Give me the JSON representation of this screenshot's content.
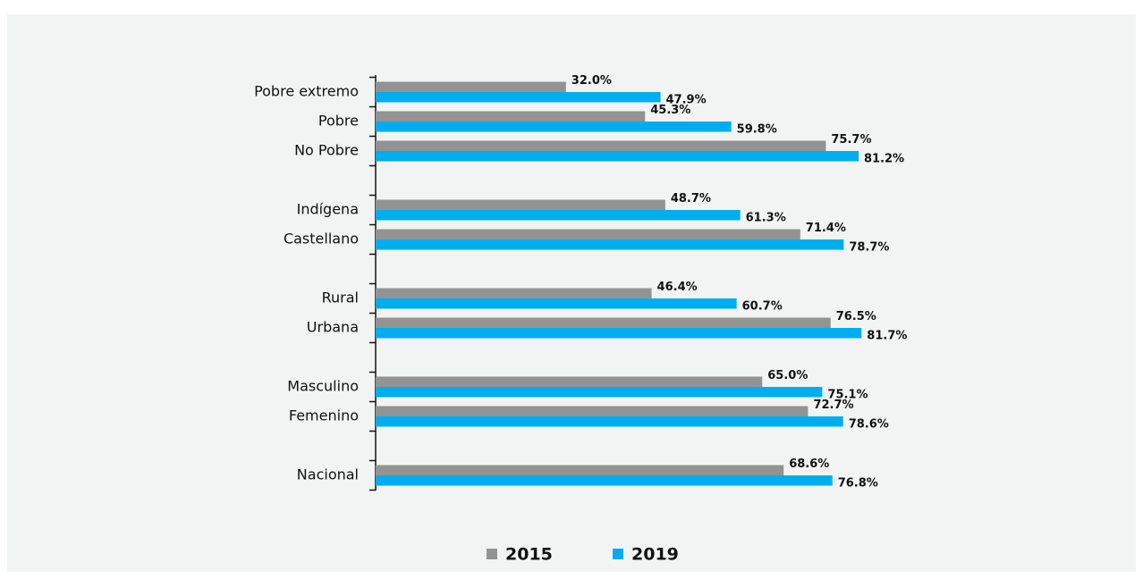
{
  "chart_data": {
    "type": "hbar",
    "categories": [
      "Pobre extremo",
      "Pobre",
      "No Pobre",
      null,
      "Indígena",
      "Castellano",
      null,
      "Rural",
      "Urbana",
      null,
      "Masculino",
      "Femenino",
      null,
      "Nacional"
    ],
    "series": [
      {
        "name": "2015",
        "color": "#939393",
        "values": [
          32.0,
          45.3,
          75.7,
          null,
          48.7,
          71.4,
          null,
          46.4,
          76.5,
          null,
          65.0,
          72.7,
          null,
          68.6
        ],
        "value_labels": [
          "32.0%",
          "45.3%",
          "75.7%",
          null,
          "48.7%",
          "71.4%",
          null,
          "46.4%",
          "76.5%",
          null,
          "65.0%",
          "72.7%",
          null,
          "68.6%"
        ]
      },
      {
        "name": "2019",
        "color": "#00aeef",
        "values": [
          47.9,
          59.8,
          81.2,
          null,
          61.3,
          78.7,
          null,
          60.7,
          81.7,
          null,
          75.1,
          78.6,
          null,
          76.8
        ],
        "value_labels": [
          "47.9%",
          "59.8%",
          "81.2%",
          null,
          "61.3%",
          "78.7%",
          null,
          "60.7%",
          "81.7%",
          null,
          "75.1%",
          "78.6%",
          null,
          "76.8%"
        ]
      }
    ]
  }
}
